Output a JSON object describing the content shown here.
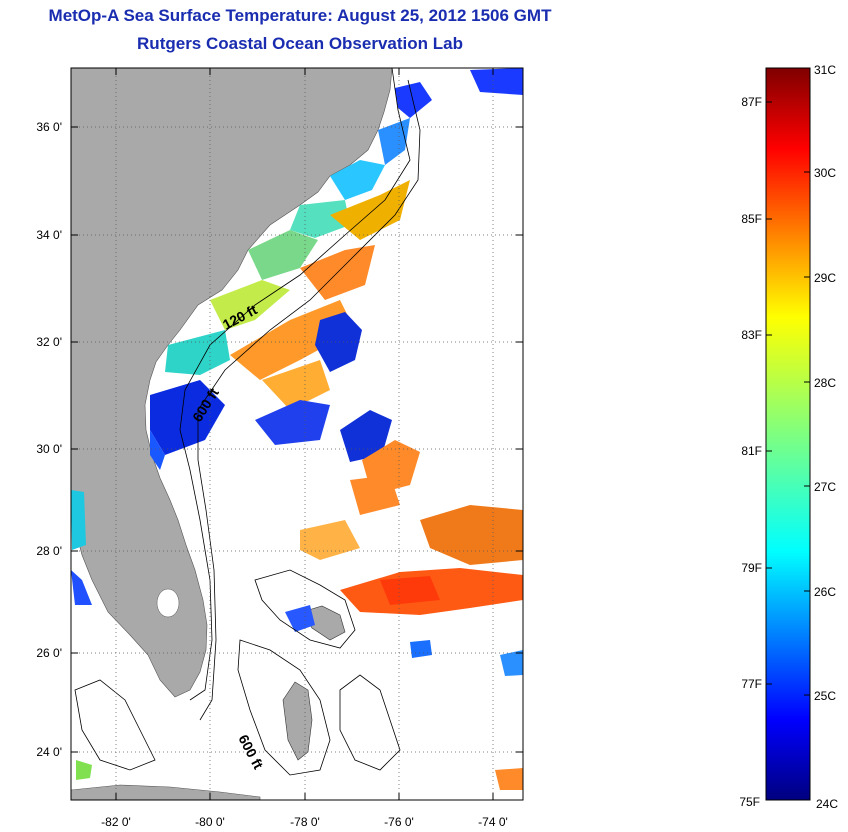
{
  "header": {
    "title": "MetOp-A Sea Surface Temperature:  August 25, 2012 1506 GMT",
    "subtitle": "Rutgers Coastal Ocean Observation Lab"
  },
  "map": {
    "lat_ticks": [
      "36 0'",
      "34 0'",
      "32 0'",
      "30 0'",
      "28 0'",
      "26 0'",
      "24 0'"
    ],
    "lon_ticks": [
      "-82 0'",
      "-80 0'",
      "-78 0'",
      "-76 0'",
      "-74 0'"
    ],
    "contour_labels": [
      "120 ft",
      "600 ft",
      "600 ft"
    ],
    "colors": {
      "land": "#a9a9a9",
      "ocean_cloud": "#ffffff"
    }
  },
  "colorbar": {
    "celsius_labels": [
      "31C",
      "30C",
      "29C",
      "28C",
      "27C",
      "26C",
      "25C",
      "24C"
    ],
    "fahrenheit_labels": [
      "87F",
      "85F",
      "83F",
      "81F",
      "79F",
      "77F",
      "75F"
    ],
    "range_c": [
      24,
      31
    ],
    "colormap": "jet"
  }
}
